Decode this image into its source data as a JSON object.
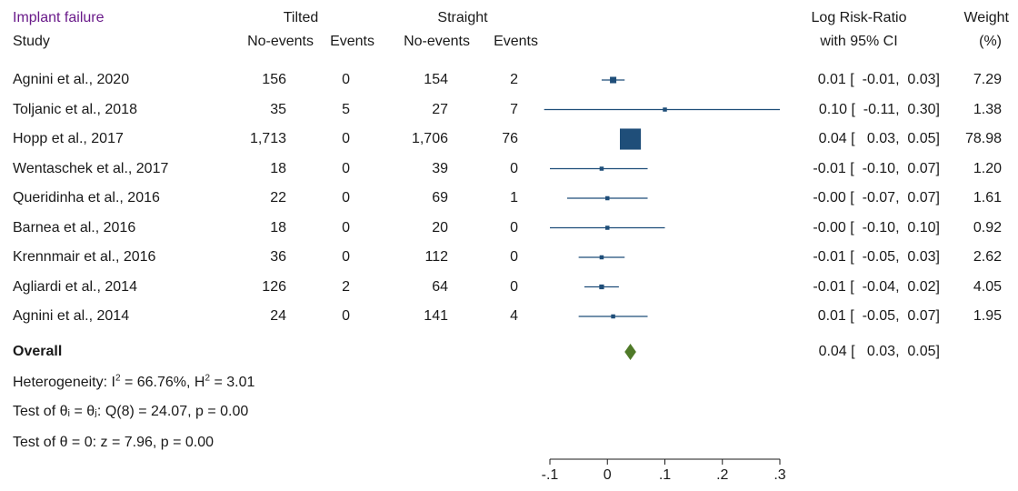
{
  "header": {
    "title": "Implant failure",
    "study_label": "Study",
    "group1": "Tilted",
    "group2": "Straight",
    "col_no_events": "No-events",
    "col_events": "Events",
    "effect_label_1": "Log Risk-Ratio",
    "effect_label_2": "with 95% CI",
    "weight_label_1": "Weight",
    "weight_label_2": "(%)"
  },
  "chart_data": {
    "type": "forest",
    "xlim": [
      -0.1,
      0.3
    ],
    "xticks": [
      -0.1,
      0,
      0.1,
      0.2,
      0.3
    ],
    "xtick_labels": [
      "-.1",
      "0",
      ".1",
      ".2",
      ".3"
    ],
    "marker_color": "#1f4e79",
    "overall_color": "#4f7a28",
    "studies": [
      {
        "name": "Agnini et al., 2020",
        "tilted_no_events": "156",
        "tilted_events": "0",
        "straight_no_events": "154",
        "straight_events": "2",
        "est": 0.01,
        "lo": -0.01,
        "hi": 0.03,
        "ci_text": "0.01 [  -0.01,  0.03]",
        "weight": 7.29,
        "weight_text": "7.29"
      },
      {
        "name": "Toljanic et al., 2018",
        "tilted_no_events": "35",
        "tilted_events": "5",
        "straight_no_events": "27",
        "straight_events": "7",
        "est": 0.1,
        "lo": -0.11,
        "hi": 0.3,
        "ci_text": "0.10 [  -0.11,  0.30]",
        "weight": 1.38,
        "weight_text": "1.38"
      },
      {
        "name": "Hopp et al., 2017",
        "tilted_no_events": "1,713",
        "tilted_events": "0",
        "straight_no_events": "1,706",
        "straight_events": "76",
        "est": 0.04,
        "lo": 0.03,
        "hi": 0.05,
        "ci_text": "0.04 [   0.03,  0.05]",
        "weight": 78.98,
        "weight_text": "78.98"
      },
      {
        "name": "Wentaschek et al., 2017",
        "tilted_no_events": "18",
        "tilted_events": "0",
        "straight_no_events": "39",
        "straight_events": "0",
        "est": -0.01,
        "lo": -0.1,
        "hi": 0.07,
        "ci_text": "-0.01 [  -0.10,  0.07]",
        "weight": 1.2,
        "weight_text": "1.20"
      },
      {
        "name": "Queridinha et al., 2016",
        "tilted_no_events": "22",
        "tilted_events": "0",
        "straight_no_events": "69",
        "straight_events": "1",
        "est": 0.0,
        "lo": -0.07,
        "hi": 0.07,
        "ci_text": "-0.00 [  -0.07,  0.07]",
        "weight": 1.61,
        "weight_text": "1.61"
      },
      {
        "name": "Barnea et al., 2016",
        "tilted_no_events": "18",
        "tilted_events": "0",
        "straight_no_events": "20",
        "straight_events": "0",
        "est": 0.0,
        "lo": -0.1,
        "hi": 0.1,
        "ci_text": "-0.00 [  -0.10,  0.10]",
        "weight": 0.92,
        "weight_text": "0.92"
      },
      {
        "name": "Krennmair et al., 2016",
        "tilted_no_events": "36",
        "tilted_events": "0",
        "straight_no_events": "112",
        "straight_events": "0",
        "est": -0.01,
        "lo": -0.05,
        "hi": 0.03,
        "ci_text": "-0.01 [  -0.05,  0.03]",
        "weight": 2.62,
        "weight_text": "2.62"
      },
      {
        "name": "Agliardi et al., 2014",
        "tilted_no_events": "126",
        "tilted_events": "2",
        "straight_no_events": "64",
        "straight_events": "0",
        "est": -0.01,
        "lo": -0.04,
        "hi": 0.02,
        "ci_text": "-0.01 [  -0.04,  0.02]",
        "weight": 4.05,
        "weight_text": "4.05"
      },
      {
        "name": "Agnini et al., 2014",
        "tilted_no_events": "24",
        "tilted_events": "0",
        "straight_no_events": "141",
        "straight_events": "4",
        "est": 0.01,
        "lo": -0.05,
        "hi": 0.07,
        "ci_text": "0.01 [  -0.05,  0.07]",
        "weight": 1.95,
        "weight_text": "1.95"
      }
    ],
    "overall": {
      "label": "Overall",
      "est": 0.04,
      "lo": 0.03,
      "hi": 0.05,
      "ci_text": "0.04 [   0.03,  0.05]"
    }
  },
  "stats": {
    "heterogeneity_prefix": "Heterogeneity: I",
    "i2_sup": "2",
    "heterogeneity_mid": " = 66.76%, H",
    "h2_sup": "2",
    "heterogeneity_end": " = 3.01",
    "test_theta_i": "Test of θᵢ = θⱼ: Q(8) = 24.07, p = 0.00",
    "test_theta_0": "Test of θ = 0: z = 7.96, p = 0.00"
  }
}
